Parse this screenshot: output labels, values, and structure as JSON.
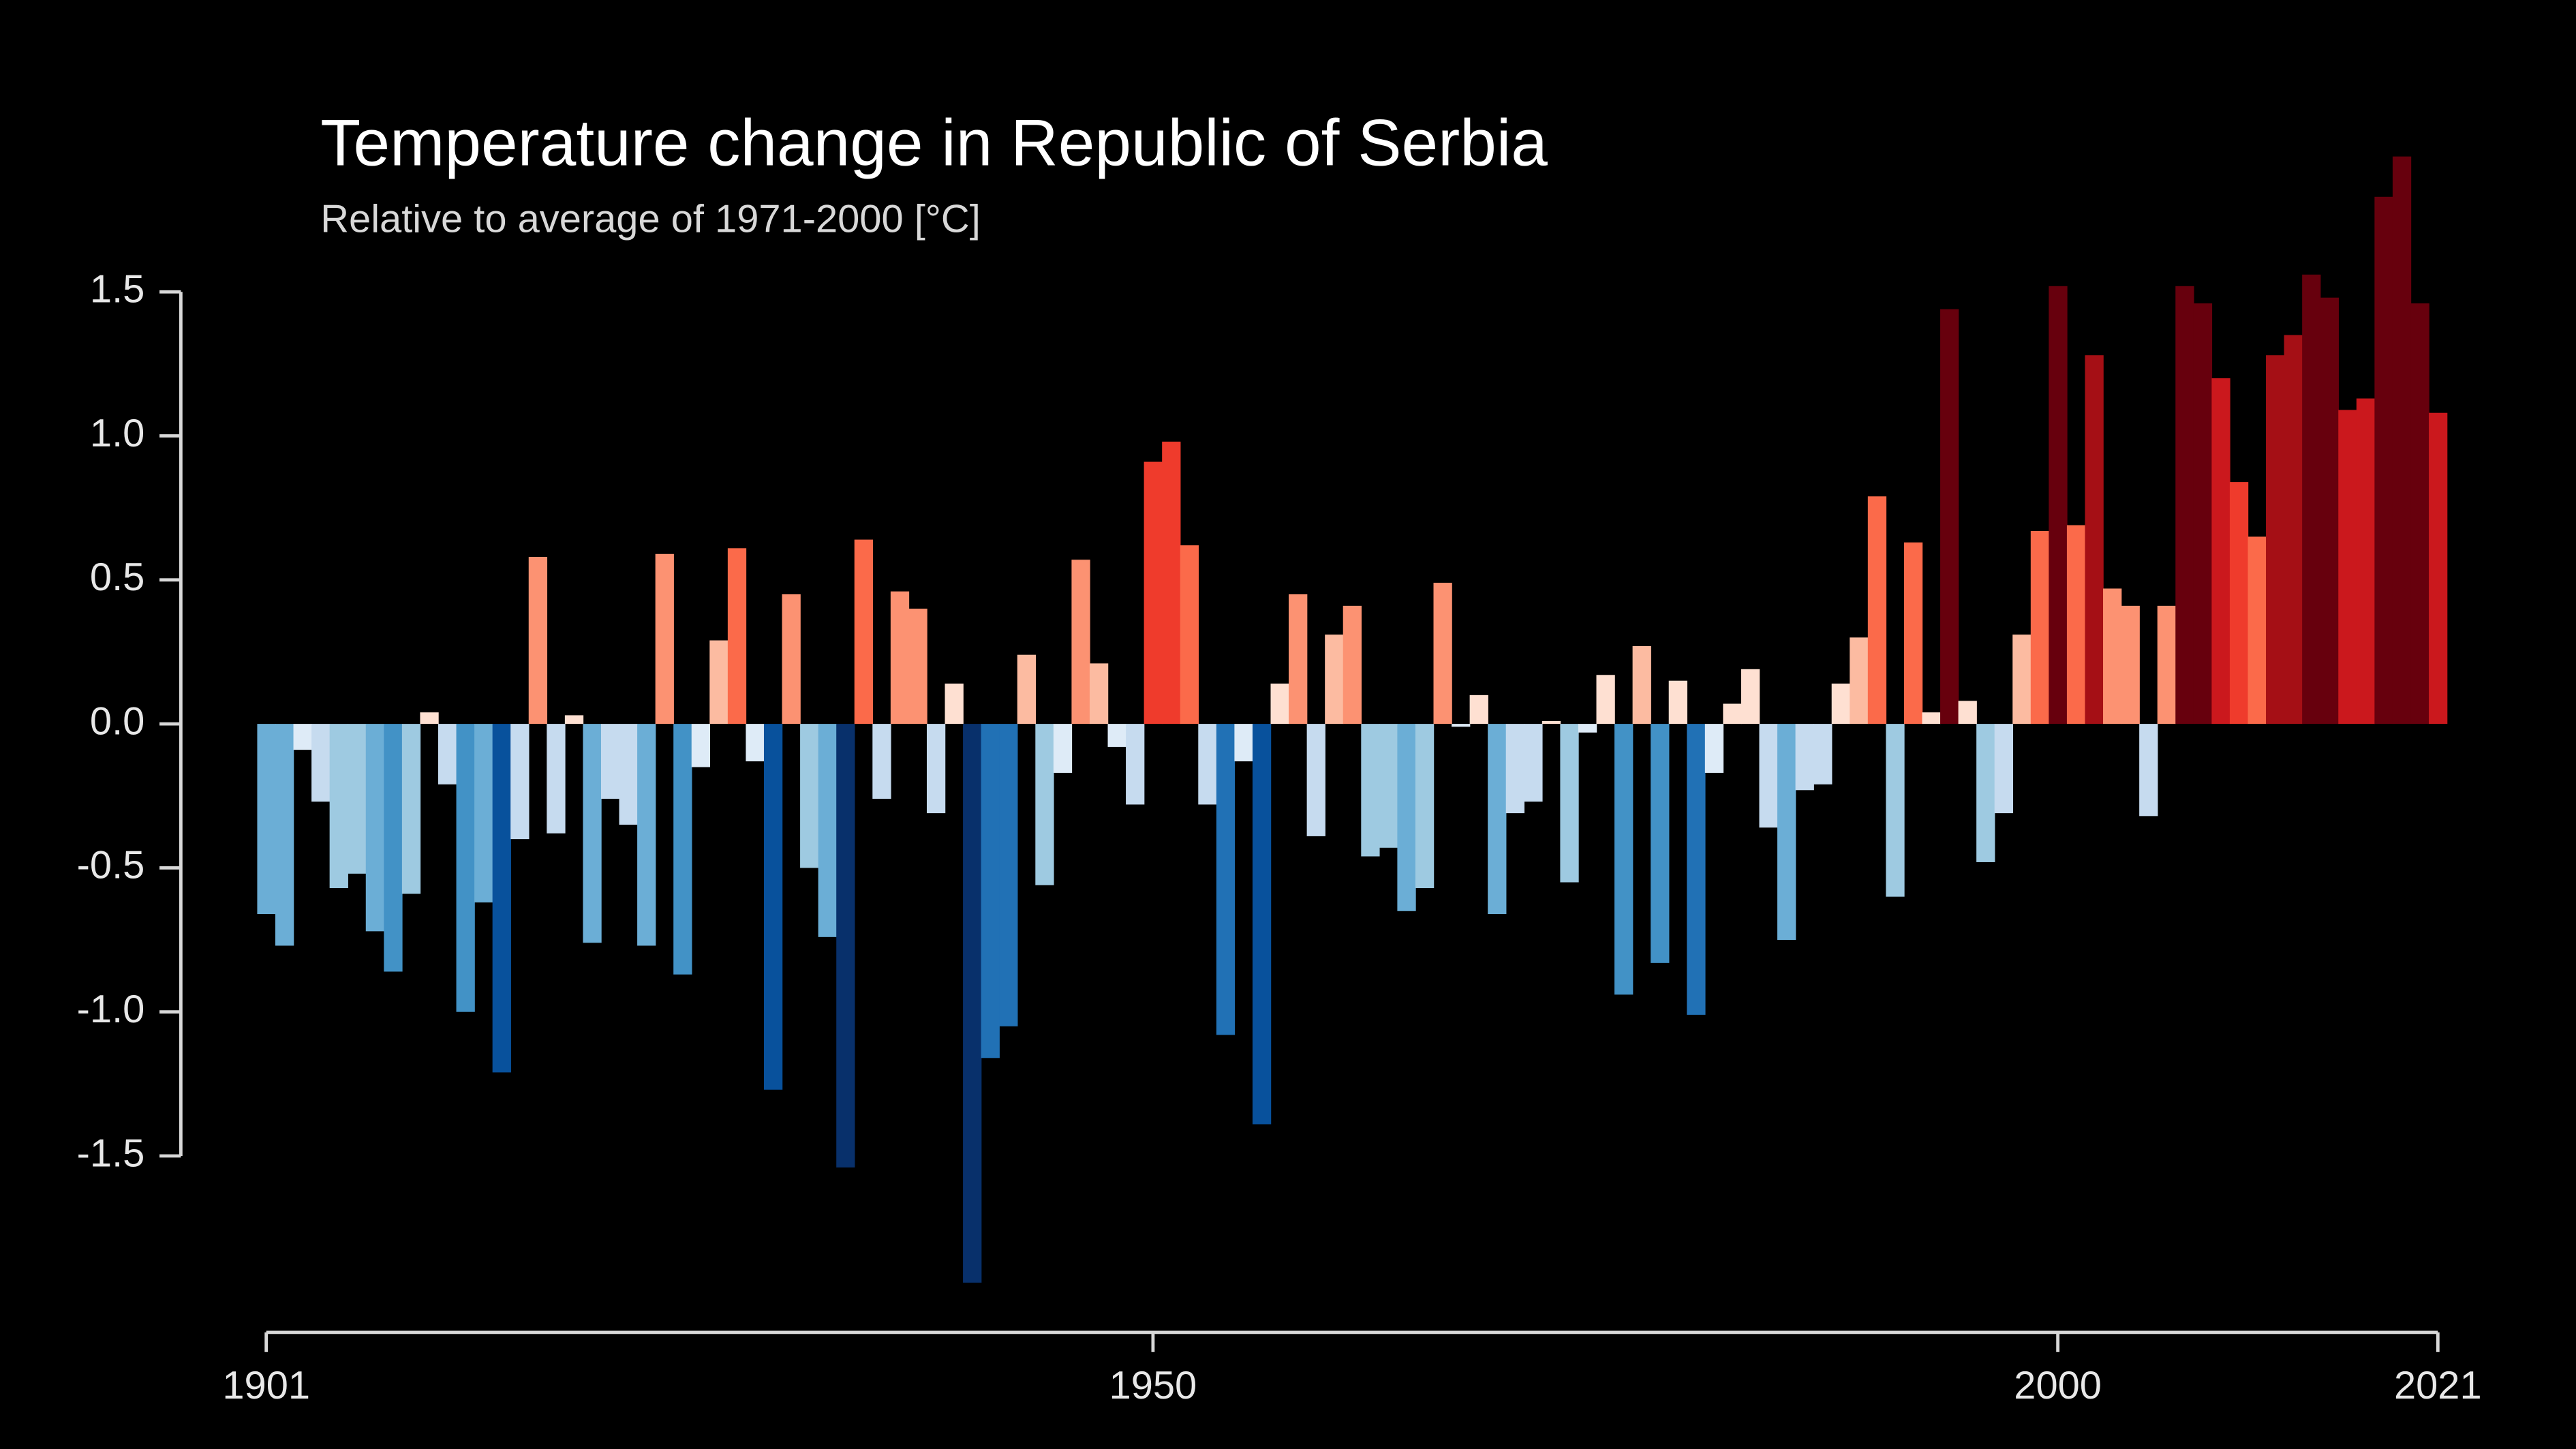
{
  "chart_data": {
    "type": "bar",
    "title": "Temperature change in Republic of Serbia",
    "subtitle": "Relative to average of 1971-2000  [°C]",
    "x": [
      1901,
      1902,
      1903,
      1904,
      1905,
      1906,
      1907,
      1908,
      1909,
      1910,
      1911,
      1912,
      1913,
      1914,
      1915,
      1916,
      1917,
      1918,
      1919,
      1920,
      1921,
      1922,
      1923,
      1924,
      1925,
      1926,
      1927,
      1928,
      1929,
      1930,
      1931,
      1932,
      1933,
      1934,
      1935,
      1936,
      1937,
      1938,
      1939,
      1940,
      1941,
      1942,
      1943,
      1944,
      1945,
      1946,
      1947,
      1948,
      1949,
      1950,
      1951,
      1952,
      1953,
      1954,
      1955,
      1956,
      1957,
      1958,
      1959,
      1960,
      1961,
      1962,
      1963,
      1964,
      1965,
      1966,
      1967,
      1968,
      1969,
      1970,
      1971,
      1972,
      1973,
      1974,
      1975,
      1976,
      1977,
      1978,
      1979,
      1980,
      1981,
      1982,
      1983,
      1984,
      1985,
      1986,
      1987,
      1988,
      1989,
      1990,
      1991,
      1992,
      1993,
      1994,
      1995,
      1996,
      1997,
      1998,
      1999,
      2000,
      2001,
      2002,
      2003,
      2004,
      2005,
      2006,
      2007,
      2008,
      2009,
      2010,
      2011,
      2012,
      2013,
      2014,
      2015,
      2016,
      2017,
      2018,
      2019,
      2020,
      2021
    ],
    "values": [
      -0.66,
      -0.77,
      -0.09,
      -0.27,
      -0.57,
      -0.52,
      -0.72,
      -0.86,
      -0.59,
      0.04,
      -0.21,
      -1.0,
      -0.62,
      -1.21,
      -0.4,
      0.58,
      -0.38,
      0.03,
      -0.76,
      -0.26,
      -0.35,
      -0.77,
      0.59,
      -0.87,
      -0.15,
      0.29,
      0.61,
      -0.13,
      -1.27,
      0.45,
      -0.5,
      -0.74,
      -1.54,
      0.64,
      -0.26,
      0.46,
      0.4,
      -0.31,
      0.14,
      -1.94,
      -1.16,
      -1.05,
      0.24,
      -0.56,
      -0.17,
      0.57,
      0.21,
      -0.08,
      -0.28,
      0.91,
      0.98,
      0.62,
      -0.28,
      -1.08,
      -0.13,
      -1.39,
      0.14,
      0.45,
      -0.39,
      0.31,
      0.41,
      -0.46,
      -0.43,
      -0.65,
      -0.57,
      0.49,
      -0.01,
      0.1,
      -0.66,
      -0.31,
      -0.27,
      0.01,
      -0.55,
      -0.03,
      0.17,
      -0.94,
      0.27,
      -0.83,
      0.15,
      -1.01,
      -0.17,
      0.07,
      0.19,
      -0.36,
      -0.75,
      -0.23,
      -0.21,
      0.14,
      0.3,
      0.79,
      -0.6,
      0.63,
      0.04,
      1.44,
      0.08,
      -0.48,
      -0.31,
      0.31,
      0.67,
      1.52,
      0.69,
      1.28,
      0.47,
      0.41,
      -0.32,
      0.41,
      1.52,
      1.46,
      1.2,
      0.84,
      0.65,
      1.28,
      1.35,
      1.56,
      1.48,
      1.09,
      1.13,
      1.83,
      1.97,
      1.46,
      1.08
    ],
    "xlim": [
      1901,
      2021
    ],
    "xticks": [
      1901,
      1950,
      2000,
      2021
    ],
    "ylim": [
      -1.97,
      2.0
    ],
    "yticks": [
      -1.5,
      {
        "value": -1,
        "label": "-1.0"
      },
      -0.5,
      {
        "value": 0,
        "label": "0.0"
      },
      0.5,
      {
        "value": 1,
        "label": "1.0"
      },
      1.5
    ],
    "color_range": [
      -1.6,
      1.6
    ],
    "colors": [
      "#08306b",
      "#08519c",
      "#2171b5",
      "#4292c6",
      "#6baed6",
      "#9ecae1",
      "#c6dbef",
      "#deebf7",
      "#fee0d2",
      "#fcbba1",
      "#fc9272",
      "#fb6a4a",
      "#ef3b2c",
      "#cb181d",
      "#a50f15",
      "#67000d"
    ]
  }
}
